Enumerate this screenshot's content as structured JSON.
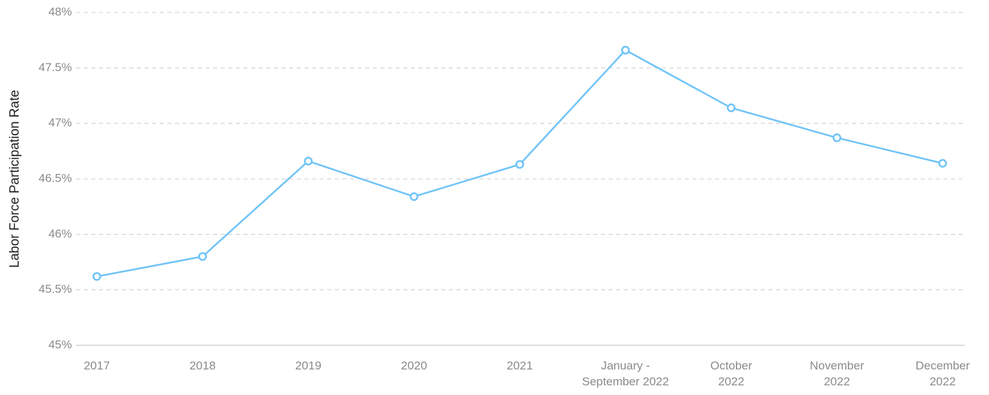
{
  "chart_data": {
    "type": "line",
    "y_axis_label": "Labor Force Participation Rate",
    "categories": [
      "2017",
      "2018",
      "2019",
      "2020",
      "2021",
      "January -\nSeptember 2022",
      "October\n2022",
      "November\n2022",
      "December\n2022"
    ],
    "series": [
      {
        "name": "Labor Force Participation Rate",
        "color": "#6ec3f8",
        "values": [
          45.62,
          45.8,
          46.66,
          46.34,
          46.63,
          47.66,
          47.14,
          46.87,
          46.64
        ]
      }
    ],
    "ylim": [
      45,
      48
    ],
    "yticks": [
      {
        "value": 45,
        "label": "45%"
      },
      {
        "value": 45.5,
        "label": "45.5%"
      },
      {
        "value": 46,
        "label": "46%"
      },
      {
        "value": 46.5,
        "label": "46.5%"
      },
      {
        "value": 47,
        "label": "47%"
      },
      {
        "value": 47.5,
        "label": "47.5%"
      },
      {
        "value": 48,
        "label": "48%"
      }
    ],
    "grid": true
  }
}
